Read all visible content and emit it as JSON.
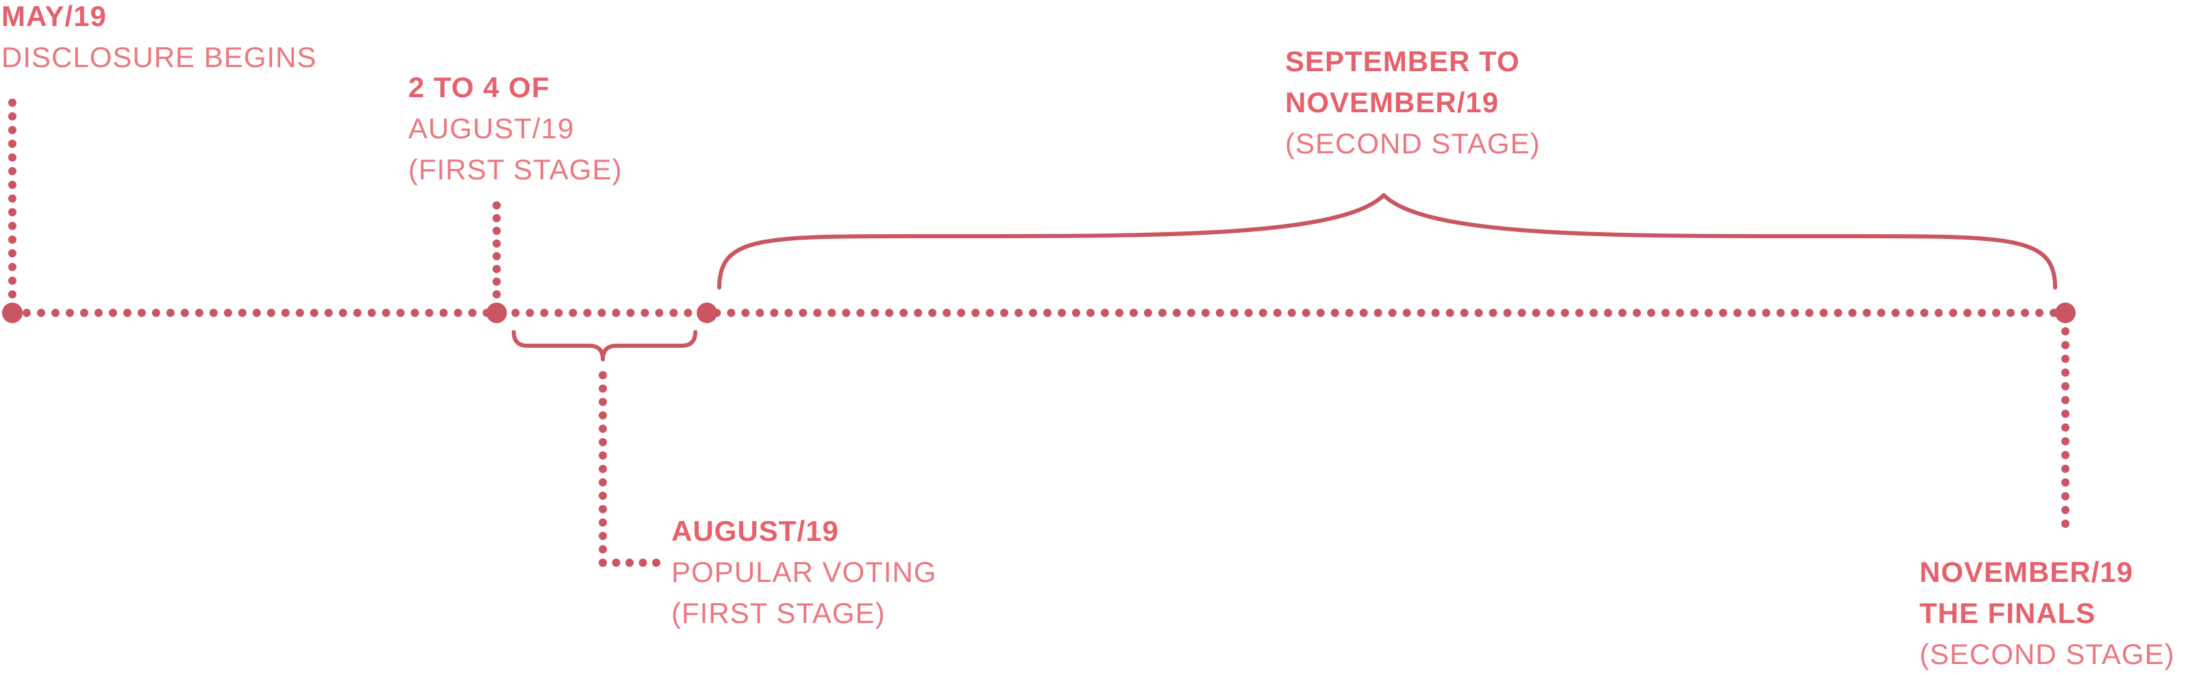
{
  "colors": {
    "line": "#c95662",
    "text": "#e5616b"
  },
  "events": [
    {
      "id": "may",
      "bold": [
        "MAY/19"
      ],
      "light": [
        "DISCLOSURE BEGINS"
      ]
    },
    {
      "id": "aug-first",
      "bold": [
        "2 TO 4 OF"
      ],
      "light": [
        "AUGUST/19",
        "(FIRST STAGE)"
      ]
    },
    {
      "id": "sep-nov",
      "bold": [
        "SEPTEMBER TO",
        "NOVEMBER/19"
      ],
      "light": [
        "(SECOND STAGE)"
      ]
    },
    {
      "id": "aug-voting",
      "bold": [
        "AUGUST/19"
      ],
      "light": [
        "POPULAR VOTING",
        "(FIRST STAGE)"
      ]
    },
    {
      "id": "nov-finals",
      "bold": [
        "NOVEMBER/19",
        "THE FINALS"
      ],
      "light": [
        "(SECOND STAGE)"
      ]
    }
  ]
}
